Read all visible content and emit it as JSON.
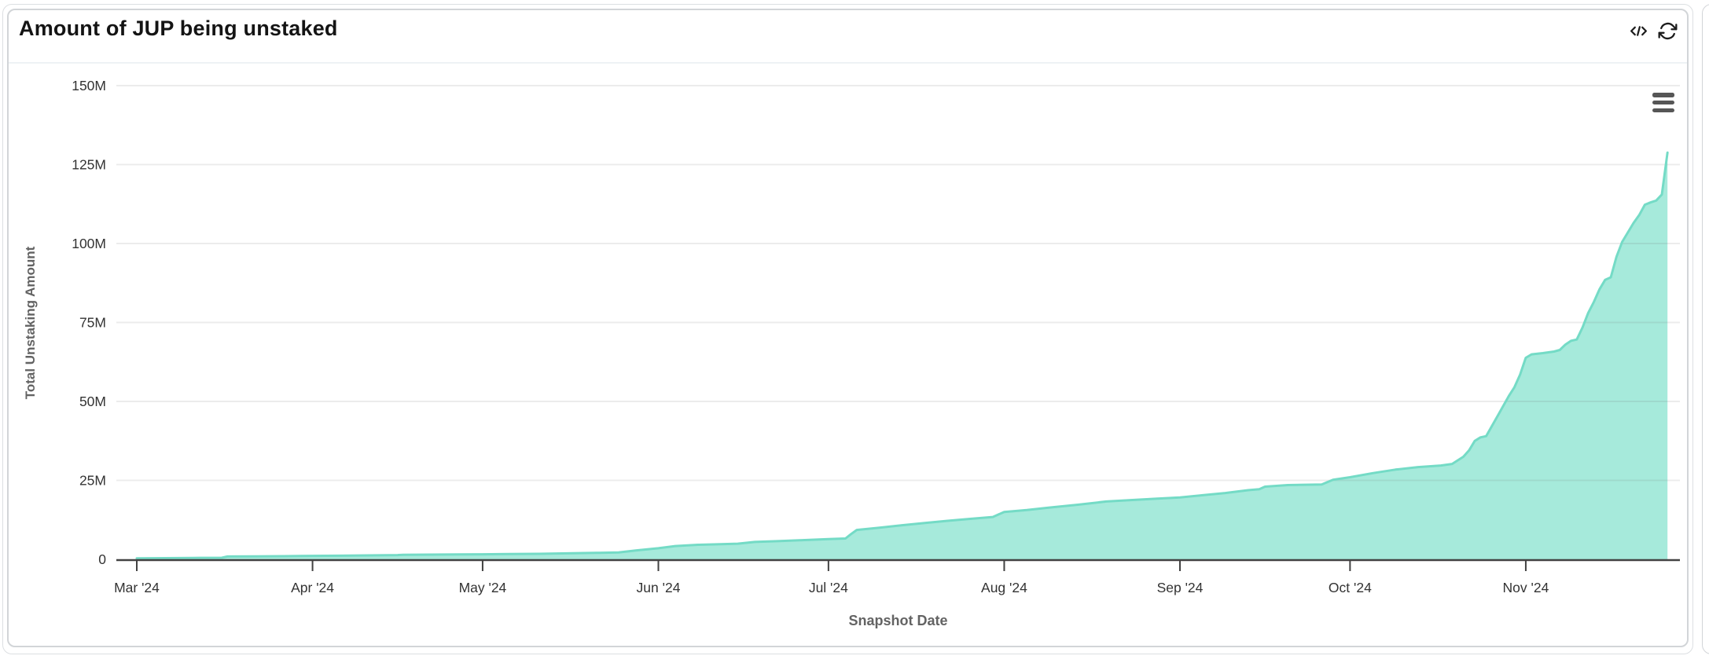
{
  "header": {
    "title": "Amount of JUP being unstaked",
    "icons": {
      "code": "code-icon",
      "refresh": "refresh-icon",
      "menu": "chart-menu-icon"
    }
  },
  "colors": {
    "accent_line": "#74dbc6",
    "accent_fill": "#a6eadb",
    "axis": "#424242",
    "grid": "rgba(110,110,110,0.13)",
    "tick_text": "#333333",
    "axis_title_text": "#636363",
    "title_text": "#141414",
    "border": "#d2d5d8"
  },
  "chart_data": {
    "type": "area",
    "title": "Amount of JUP being unstaked",
    "xlabel": "Snapshot Date",
    "ylabel": "Total Unstaking Amount",
    "y_unit": "M (millions of JUP)",
    "ylim": [
      0,
      150
    ],
    "grid": true,
    "legend": "none",
    "x_ticks": [
      {
        "date": "2024-03-01",
        "label": "Mar '24"
      },
      {
        "date": "2024-04-01",
        "label": "Apr '24"
      },
      {
        "date": "2024-05-01",
        "label": "May '24"
      },
      {
        "date": "2024-06-01",
        "label": "Jun '24"
      },
      {
        "date": "2024-07-01",
        "label": "Jul '24"
      },
      {
        "date": "2024-08-01",
        "label": "Aug '24"
      },
      {
        "date": "2024-09-01",
        "label": "Sep '24"
      },
      {
        "date": "2024-10-01",
        "label": "Oct '24"
      },
      {
        "date": "2024-11-01",
        "label": "Nov '24"
      }
    ],
    "y_ticks": [
      {
        "value": 0,
        "label": "0"
      },
      {
        "value": 25,
        "label": "25M"
      },
      {
        "value": 50,
        "label": "50M"
      },
      {
        "value": 75,
        "label": "75M"
      },
      {
        "value": 100,
        "label": "100M"
      },
      {
        "value": 125,
        "label": "125M"
      },
      {
        "value": 150,
        "label": "150M"
      }
    ],
    "series": [
      {
        "name": "Total Unstaking Amount",
        "points_unit_millions": true,
        "points": [
          [
            "2024-03-01",
            0.3
          ],
          [
            "2024-03-06",
            0.38
          ],
          [
            "2024-03-11",
            0.45
          ],
          [
            "2024-03-16",
            0.5
          ],
          [
            "2024-03-17",
            0.9
          ],
          [
            "2024-03-22",
            0.95
          ],
          [
            "2024-03-27",
            1.0
          ],
          [
            "2024-04-01",
            1.1
          ],
          [
            "2024-04-06",
            1.15
          ],
          [
            "2024-04-11",
            1.25
          ],
          [
            "2024-04-16",
            1.35
          ],
          [
            "2024-04-17",
            1.45
          ],
          [
            "2024-04-22",
            1.5
          ],
          [
            "2024-04-27",
            1.55
          ],
          [
            "2024-05-01",
            1.6
          ],
          [
            "2024-05-06",
            1.7
          ],
          [
            "2024-05-11",
            1.75
          ],
          [
            "2024-05-16",
            1.9
          ],
          [
            "2024-05-21",
            2.05
          ],
          [
            "2024-05-25",
            2.2
          ],
          [
            "2024-05-28",
            2.8
          ],
          [
            "2024-06-01",
            3.5
          ],
          [
            "2024-06-04",
            4.2
          ],
          [
            "2024-06-08",
            4.6
          ],
          [
            "2024-06-12",
            4.8
          ],
          [
            "2024-06-15",
            4.95
          ],
          [
            "2024-06-18",
            5.5
          ],
          [
            "2024-06-22",
            5.75
          ],
          [
            "2024-06-26",
            6.05
          ],
          [
            "2024-07-01",
            6.4
          ],
          [
            "2024-07-04",
            6.6
          ],
          [
            "2024-07-05",
            8.0
          ],
          [
            "2024-07-06",
            9.3
          ],
          [
            "2024-07-10",
            10.0
          ],
          [
            "2024-07-14",
            10.8
          ],
          [
            "2024-07-18",
            11.5
          ],
          [
            "2024-07-22",
            12.2
          ],
          [
            "2024-07-26",
            12.8
          ],
          [
            "2024-07-30",
            13.4
          ],
          [
            "2024-07-31",
            14.2
          ],
          [
            "2024-08-01",
            15.0
          ],
          [
            "2024-08-05",
            15.6
          ],
          [
            "2024-08-09",
            16.4
          ],
          [
            "2024-08-14",
            17.3
          ],
          [
            "2024-08-19",
            18.3
          ],
          [
            "2024-08-23",
            18.7
          ],
          [
            "2024-08-28",
            19.2
          ],
          [
            "2024-09-01",
            19.6
          ],
          [
            "2024-09-05",
            20.3
          ],
          [
            "2024-09-09",
            21.0
          ],
          [
            "2024-09-13",
            21.9
          ],
          [
            "2024-09-15",
            22.2
          ],
          [
            "2024-09-16",
            23.0
          ],
          [
            "2024-09-20",
            23.5
          ],
          [
            "2024-09-26",
            23.7
          ],
          [
            "2024-09-28",
            25.2
          ],
          [
            "2024-10-01",
            26.0
          ],
          [
            "2024-10-05",
            27.3
          ],
          [
            "2024-10-09",
            28.4
          ],
          [
            "2024-10-13",
            29.2
          ],
          [
            "2024-10-17",
            29.7
          ],
          [
            "2024-10-19",
            30.2
          ],
          [
            "2024-10-21",
            32.5
          ],
          [
            "2024-10-22",
            34.5
          ],
          [
            "2024-10-23",
            37.5
          ],
          [
            "2024-10-24",
            38.6
          ],
          [
            "2024-10-25",
            39.0
          ],
          [
            "2024-10-27",
            45.3
          ],
          [
            "2024-10-29",
            51.7
          ],
          [
            "2024-10-30",
            54.5
          ],
          [
            "2024-10-31",
            58.5
          ],
          [
            "2024-11-01",
            63.8
          ],
          [
            "2024-11-02",
            64.9
          ],
          [
            "2024-11-04",
            65.3
          ],
          [
            "2024-11-06",
            65.8
          ],
          [
            "2024-11-07",
            66.3
          ],
          [
            "2024-11-08",
            68.0
          ],
          [
            "2024-11-09",
            69.2
          ],
          [
            "2024-11-10",
            69.6
          ],
          [
            "2024-11-11",
            73.4
          ],
          [
            "2024-11-12",
            78.0
          ],
          [
            "2024-11-13",
            81.5
          ],
          [
            "2024-11-14",
            85.5
          ],
          [
            "2024-11-15",
            88.5
          ],
          [
            "2024-11-16",
            89.3
          ],
          [
            "2024-11-17",
            95.8
          ],
          [
            "2024-11-18",
            100.5
          ],
          [
            "2024-11-19",
            103.5
          ],
          [
            "2024-11-20",
            106.5
          ],
          [
            "2024-11-21",
            109.0
          ],
          [
            "2024-11-22",
            112.3
          ],
          [
            "2024-11-23",
            113.0
          ],
          [
            "2024-11-24",
            113.6
          ],
          [
            "2024-11-25",
            115.5
          ],
          [
            "2024-11-26",
            128.8
          ]
        ]
      }
    ]
  }
}
